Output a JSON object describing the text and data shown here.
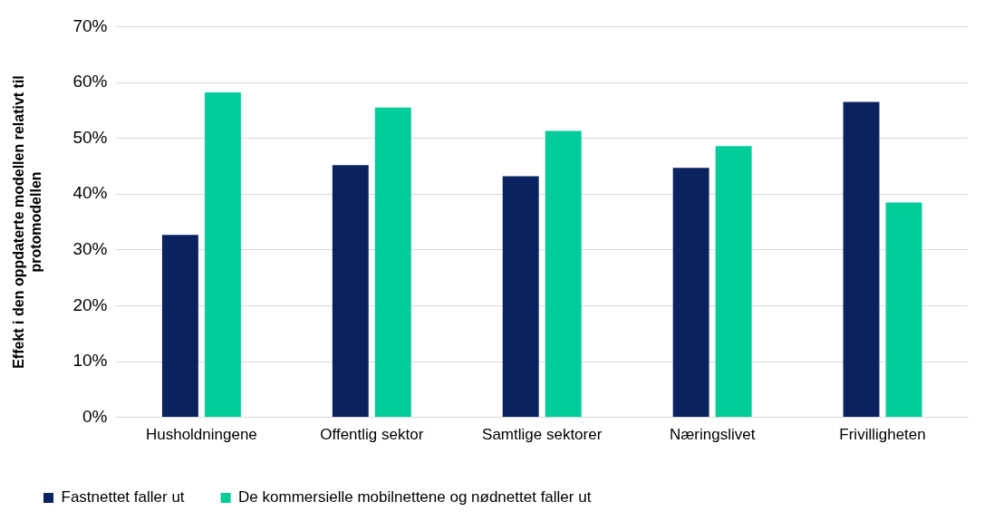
{
  "chart_data": {
    "type": "bar",
    "ylabel": "Effekt i den oppdaterte modellen relativt til protomodellen",
    "categories": [
      "Husholdningene",
      "Offentlig sektor",
      "Samtlige sektorer",
      "Næringslivet",
      "Frivilligheten"
    ],
    "series": [
      {
        "name": "Fastnettet faller ut",
        "color": "#0b2260",
        "values": [
          32.7,
          45.2,
          43.2,
          44.7,
          56.5
        ]
      },
      {
        "name": "De kommersielle mobilnettene og nødnettet faller ut",
        "color": "#00cc99",
        "values": [
          58.2,
          55.5,
          51.3,
          48.6,
          38.5
        ]
      }
    ],
    "ylim": [
      0,
      70
    ],
    "yticks": [
      {
        "value": 0,
        "label": "0%"
      },
      {
        "value": 10,
        "label": "10%"
      },
      {
        "value": 20,
        "label": "20%"
      },
      {
        "value": 30,
        "label": "30%"
      },
      {
        "value": 40,
        "label": "40%"
      },
      {
        "value": 50,
        "label": "50%"
      },
      {
        "value": 60,
        "label": "60%"
      },
      {
        "value": 70,
        "label": "70%"
      }
    ],
    "grid": "y",
    "legend": "bottom"
  }
}
